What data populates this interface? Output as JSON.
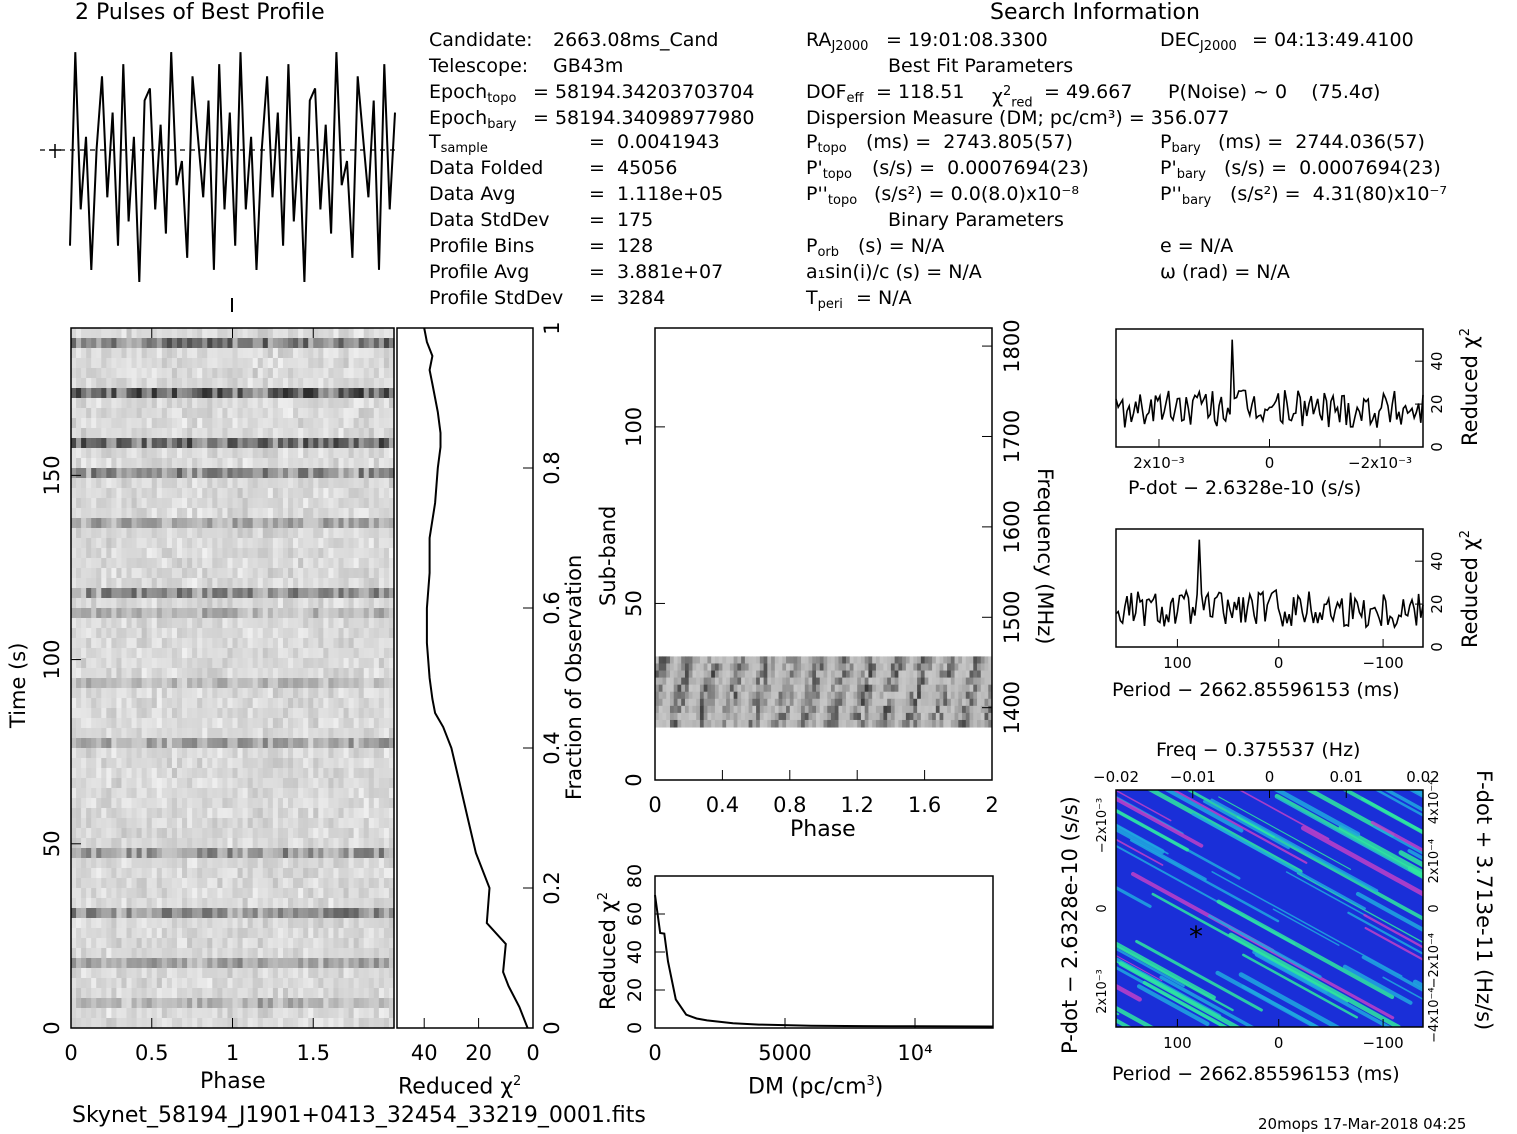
{
  "titles": {
    "profile": "2 Pulses of Best Profile",
    "search": "Search Information",
    "best_fit": "Best Fit Parameters",
    "binary": "Binary Parameters"
  },
  "left_params": [
    {
      "label": "Candidate:",
      "value": "2663.08ms_Cand"
    },
    {
      "label": "Telescope:",
      "value": "GB43m"
    },
    {
      "label": "Epoch_topo",
      "value": "= 58194.34203703704"
    },
    {
      "label": "Epoch_bary",
      "value": "= 58194.34098977980"
    },
    {
      "label": "T_sample",
      "value": "=  0.0041943"
    },
    {
      "label": "Data Folded",
      "value": "=  45056"
    },
    {
      "label": "Data Avg",
      "value": "=  1.118e+05"
    },
    {
      "label": "Data StdDev",
      "value": "=  175"
    },
    {
      "label": "Profile Bins",
      "value": "=  128"
    },
    {
      "label": "Profile Avg",
      "value": "=  3.881e+07"
    },
    {
      "label": "Profile StdDev",
      "value": "=  3284"
    }
  ],
  "search_info": {
    "ra": "= 19:01:08.3300",
    "dec": "= 04:13:49.4100",
    "dof": "= 118.51",
    "chi2_red": "= 49.667",
    "p_noise": "P(Noise) ~ 0    (75.4σ)",
    "dm": "Dispersion Measure (DM; pc/cm³) = 356.077",
    "p_topo": "(ms) =  2743.805(57)",
    "p_bary": "(ms) =  2744.036(57)",
    "pd_topo": "(s/s) =  0.0007694(23)",
    "pd_bary": "(s/s) =  0.0007694(23)",
    "pdd_topo": "(s/s²) = 0.0(8.0)x10⁻⁸",
    "pdd_bary": "(s/s²) =  4.31(80)x10⁻⁷",
    "porb": "(s) = N/A",
    "a1": "a₁sin(i)/c (s) = N/A",
    "tperi": "= N/A",
    "e": "e = N/A",
    "omega": "ω (rad) = N/A"
  },
  "axis_labels": {
    "phase": "Phase",
    "time": "Time (s)",
    "reduced_chi2": "Reduced χ²",
    "fraction": "Fraction of Observation",
    "subband": "Sub-band",
    "frequency": "Frequency (MHz)",
    "dm": "DM (pc/cm³)",
    "pdot_label": "P-dot − 2.6328e-10 (s/s)",
    "period_label": "Period − 2662.85596153 (ms)",
    "freq_label": "Freq − 0.375537 (Hz)",
    "fdot_label": "F-dot + 3.713e-11 (Hz/s)",
    "pdot_side": "P-dot − 2.6328e-10 (s/s)"
  },
  "footer": {
    "filename": "Skynet_58194_J1901+0413_32454_33219_0001.fits",
    "stamp": "20mops 17-Mar-2018 04:25"
  },
  "chart_data": [
    {
      "type": "line",
      "title": "2 Pulses of Best Profile",
      "xlabel": "",
      "ylabel": "",
      "x_range": [
        0,
        2
      ],
      "series": [
        {
          "values": [
            0.15,
            0.95,
            0.3,
            0.6,
            0.05,
            0.55,
            0.85,
            0.35,
            0.7,
            0.15,
            0.9,
            0.25,
            0.6,
            0.0,
            0.75,
            0.8,
            0.3,
            0.65,
            0.2,
            0.95,
            0.4,
            0.5,
            0.1,
            0.85,
            0.6,
            0.35,
            0.75,
            0.05,
            0.9,
            0.3,
            0.7,
            0.15,
            0.95,
            0.3,
            0.6,
            0.05,
            0.55,
            0.85,
            0.35,
            0.7,
            0.15,
            0.9,
            0.25,
            0.6,
            0.0,
            0.75,
            0.8,
            0.3,
            0.65,
            0.2,
            0.95,
            0.4,
            0.5,
            0.1,
            0.85,
            0.6,
            0.35,
            0.75,
            0.05,
            0.9,
            0.3,
            0.7
          ]
        }
      ]
    },
    {
      "type": "heatmap",
      "title": "",
      "xlabel": "Phase",
      "ylabel": "Time (s)",
      "x_range": [
        0,
        2
      ],
      "y_range": [
        0,
        190
      ],
      "x_ticks": [
        "0",
        "0.5",
        "1",
        "1.5"
      ],
      "y_ticks": [
        "0",
        "50",
        "100",
        "150"
      ]
    },
    {
      "type": "line",
      "title": "",
      "xlabel": "Reduced χ²",
      "ylabel": "Fraction of Observation",
      "x_range": [
        50,
        0
      ],
      "y_range": [
        0,
        1
      ],
      "x_ticks": [
        "40",
        "20",
        "0"
      ],
      "y_ticks": [
        "0",
        "0.2",
        "0.4",
        "0.6",
        "0.8",
        "1"
      ],
      "x": [
        2,
        5,
        9,
        11,
        10,
        17,
        16,
        21,
        24,
        27,
        30,
        33,
        36,
        37,
        38,
        39,
        39,
        38,
        38,
        36,
        35,
        34,
        34,
        35,
        36,
        37,
        38,
        37,
        39,
        40
      ],
      "y": [
        0.0,
        0.03,
        0.06,
        0.08,
        0.12,
        0.15,
        0.2,
        0.25,
        0.3,
        0.35,
        0.4,
        0.43,
        0.45,
        0.47,
        0.5,
        0.55,
        0.6,
        0.65,
        0.7,
        0.75,
        0.8,
        0.83,
        0.85,
        0.88,
        0.9,
        0.92,
        0.94,
        0.96,
        0.98,
        1.0
      ]
    },
    {
      "type": "heatmap",
      "title": "",
      "xlabel": "Phase",
      "ylabel": "Sub-band",
      "y2label": "Frequency (MHz)",
      "x_range": [
        0,
        2
      ],
      "y_range": [
        0,
        128
      ],
      "y2_range": [
        1320,
        1820
      ],
      "x_ticks": [
        "0",
        "0.4",
        "0.8",
        "1.2",
        "1.6",
        "2"
      ],
      "y_ticks": [
        "0",
        "50",
        "100"
      ],
      "y2_ticks": [
        "1400",
        "1500",
        "1600",
        "1700",
        "1800"
      ],
      "band": [
        15,
        35
      ]
    },
    {
      "type": "line",
      "title": "",
      "xlabel": "DM (pc/cm³)",
      "ylabel": "Reduced χ²",
      "x_range": [
        0,
        13000
      ],
      "y_range": [
        0,
        80
      ],
      "x_ticks": [
        "0",
        "5000",
        "10⁴"
      ],
      "y_ticks": [
        "0",
        "20",
        "40",
        "60",
        "80"
      ],
      "x": [
        0,
        200,
        356,
        500,
        800,
        1200,
        1600,
        2000,
        3000,
        4000,
        6000,
        8000,
        10000,
        13000
      ],
      "y": [
        70,
        50,
        49.7,
        35,
        15,
        7,
        5,
        4,
        2.5,
        1.8,
        1.2,
        1.0,
        0.9,
        0.8
      ]
    },
    {
      "type": "line",
      "title": "",
      "xlabel": "P-dot − 2.6328e-10 (s/s)",
      "ylabel": "Reduced χ²",
      "y_range": [
        0,
        55
      ],
      "x_ticks": [
        "2x10⁻³",
        "0",
        "−2x10⁻³"
      ],
      "y_ticks": [
        "0",
        "20",
        "40"
      ],
      "peak": 50
    },
    {
      "type": "line",
      "title": "",
      "xlabel": "Period − 2662.85596153 (ms)",
      "ylabel": "Reduced χ²",
      "x_range": [
        160,
        -140
      ],
      "y_range": [
        0,
        55
      ],
      "x_ticks": [
        "100",
        "0",
        "−100"
      ],
      "y_ticks": [
        "0",
        "20",
        "40"
      ],
      "peak": 50
    },
    {
      "type": "heatmap",
      "title": "Freq − 0.375537 (Hz)",
      "xlabel": "Period − 2662.85596153 (ms)",
      "ylabel": "P-dot − 2.6328e-10 (s/s)",
      "y2label": "F-dot + 3.713e-11 (Hz/s)",
      "x_range": [
        160,
        -140
      ],
      "x2_range": [
        -0.02,
        0.02
      ],
      "x_ticks": [
        "100",
        "0",
        "−100"
      ],
      "x2_ticks": [
        "−0.02",
        "−0.01",
        "0",
        "0.01",
        "0.02"
      ],
      "y_ticks": [
        "−2x10⁻³",
        "0",
        "2x10⁻³"
      ],
      "y2_ticks": [
        "4x10⁻⁴",
        "2x10⁻⁴",
        "0",
        "−2x10⁻⁴",
        "−4x10⁻⁴"
      ],
      "colors": [
        "#1a2fd8",
        "#1fa8e0",
        "#2ee8a0",
        "#c040c8"
      ]
    }
  ]
}
